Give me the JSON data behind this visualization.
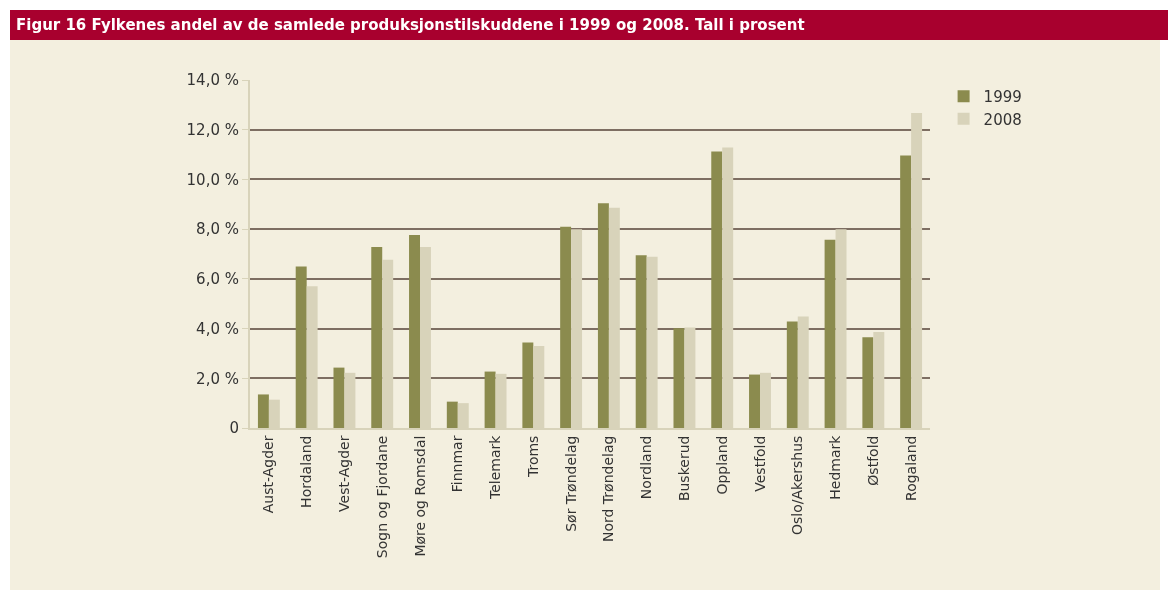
{
  "chart_data": {
    "type": "bar",
    "title": "Figur 16 Fylkenes andel av de samlede produksjonstilskuddene i 1999 og 2008. Tall i prosent",
    "categories": [
      "Aust-Agder",
      "Hordaland",
      "Vest-Agder",
      "Sogn og Fjordane",
      "Møre og Romsdal",
      "Finnmar",
      "Telemark",
      "Troms",
      "Sør Trøndelag",
      "Nord Trøndelag",
      "Nordland",
      "Buskerud",
      "Oppland",
      "Vestfold",
      "Oslo/Akershus",
      "Hedmark",
      "Østfold",
      "Rogaland"
    ],
    "series": [
      {
        "name": "1999",
        "color": "#8b8b4e",
        "values": [
          1.35,
          6.5,
          2.43,
          7.28,
          7.76,
          1.06,
          2.27,
          3.44,
          8.1,
          9.04,
          6.95,
          4.01,
          11.12,
          2.15,
          4.28,
          7.57,
          3.65,
          10.96
        ]
      },
      {
        "name": "2008",
        "color": "#d8d3ba",
        "values": [
          1.14,
          5.7,
          2.22,
          6.77,
          7.28,
          1.0,
          2.18,
          3.3,
          8.0,
          8.86,
          6.89,
          4.04,
          11.28,
          2.22,
          4.49,
          8.0,
          3.86,
          12.67
        ]
      }
    ],
    "ylim": [
      0,
      14
    ],
    "yticks": [
      {
        "value": 0,
        "label": "0"
      },
      {
        "value": 2,
        "label": "2,0 %"
      },
      {
        "value": 4,
        "label": "4,0 %"
      },
      {
        "value": 6,
        "label": "6,0 %"
      },
      {
        "value": 8,
        "label": "8,0 %"
      },
      {
        "value": 10,
        "label": "10,0 %"
      },
      {
        "value": 12,
        "label": "12,0 %"
      },
      {
        "value": 14,
        "label": "14,0 %"
      }
    ],
    "grid": "y",
    "legend": "top right"
  }
}
